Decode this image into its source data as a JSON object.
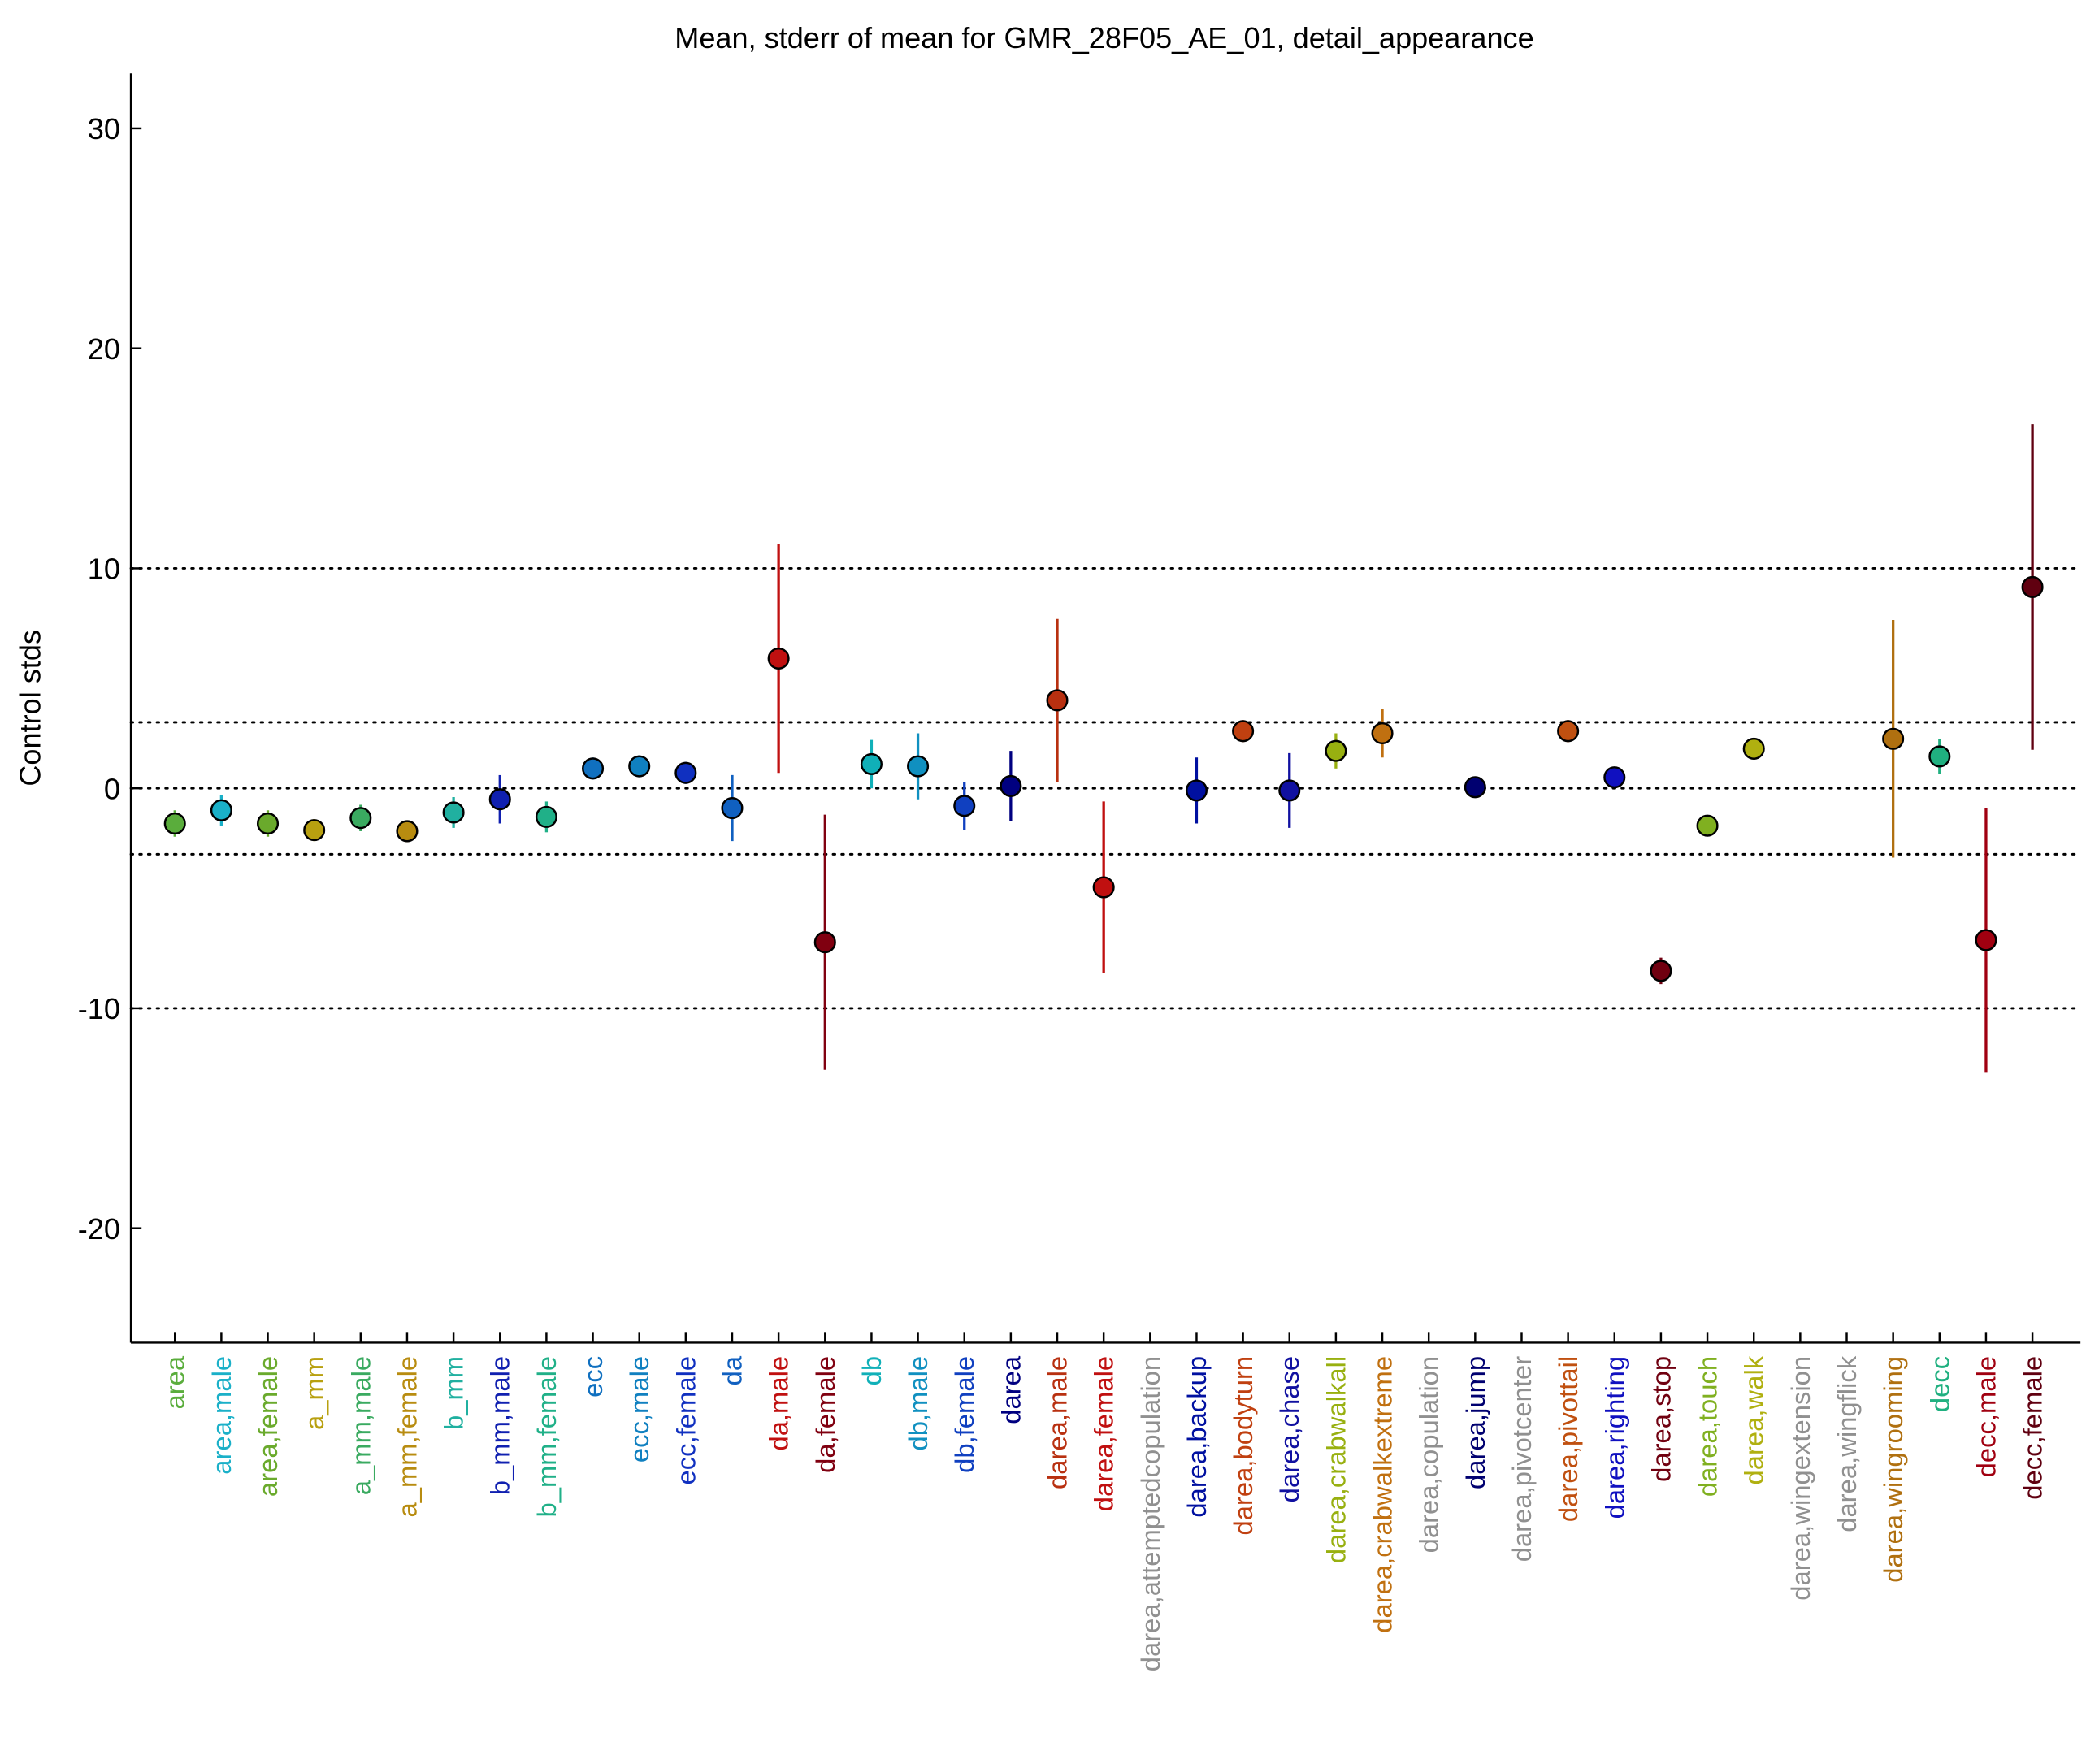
{
  "chart_data": {
    "type": "errorbar",
    "title": "Mean, stderr of mean for GMR_28F05_AE_01, detail_appearance",
    "y_label": "Control stds",
    "categories": [
      "area",
      "area,male",
      "area,female",
      "a_mm",
      "a_mm,male",
      "a_mm,female",
      "b_mm",
      "b_mm,male",
      "b_mm,female",
      "ecc",
      "ecc,male",
      "ecc,female",
      "da",
      "da,male",
      "da,female",
      "db",
      "db,male",
      "db,female",
      "darea",
      "darea,male",
      "darea,female",
      "darea,attemptedcopulation",
      "darea,backup",
      "darea,bodyturn",
      "darea,chase",
      "darea,crabwalkall",
      "darea,crabwalkextreme",
      "darea,copulation",
      "darea,jump",
      "darea,pivotcenter",
      "darea,pivottail",
      "darea,righting",
      "darea,stop",
      "darea,touch",
      "darea,walk",
      "darea,wingextension",
      "darea,wingflick",
      "darea,wingrooming",
      "decc",
      "decc,male",
      "decc,female"
    ],
    "values": [
      -1.6,
      -1.0,
      -1.6,
      -1.9,
      -1.35,
      -1.95,
      -1.1,
      -0.5,
      -1.3,
      0.9,
      1.0,
      0.7,
      -0.9,
      5.9,
      -7.0,
      1.1,
      1.0,
      -0.8,
      0.1,
      4.0,
      -4.5,
      null,
      -0.1,
      2.6,
      -0.1,
      1.7,
      2.5,
      null,
      0.05,
      null,
      2.6,
      0.5,
      -8.3,
      -1.7,
      1.8,
      null,
      null,
      2.25,
      1.45,
      -6.9,
      9.15
    ],
    "errors": [
      0.6,
      0.7,
      0.6,
      0.5,
      0.6,
      0.5,
      0.7,
      1.1,
      0.7,
      0.5,
      0.5,
      0.5,
      1.5,
      5.2,
      5.8,
      1.1,
      1.5,
      1.1,
      1.6,
      3.7,
      3.9,
      null,
      1.5,
      0.5,
      1.7,
      0.8,
      1.1,
      null,
      0.3,
      null,
      0.5,
      0.3,
      0.6,
      0.4,
      0.3,
      null,
      null,
      5.4,
      0.8,
      6.0,
      7.4
    ],
    "colors": [
      "#5aad3c",
      "#1ab0c8",
      "#6aaa2c",
      "#b8a010",
      "#3aaa60",
      "#b88c10",
      "#20b0a0",
      "#1020b0",
      "#20b088",
      "#1070c0",
      "#1080c0",
      "#1030c0",
      "#1060c0",
      "#c01010",
      "#800010",
      "#10b0b8",
      "#1090c0",
      "#1040c0",
      "#000080",
      "#b83010",
      "#c01010",
      "#909090",
      "#0010a0",
      "#c04010",
      "#1010a0",
      "#98b010",
      "#c07010",
      "#909090",
      "#000070",
      "#909090",
      "#c05010",
      "#1010c0",
      "#700010",
      "#80b020",
      "#b0b010",
      "#909090",
      "#909090",
      "#b07010",
      "#20b080",
      "#a00010",
      "#600010"
    ],
    "ylim": [
      -25.2,
      32.5
    ],
    "yticks": [
      -20,
      -10,
      0,
      10,
      20,
      30
    ],
    "reference_lines": [
      -10,
      -3,
      0,
      3,
      10
    ]
  }
}
